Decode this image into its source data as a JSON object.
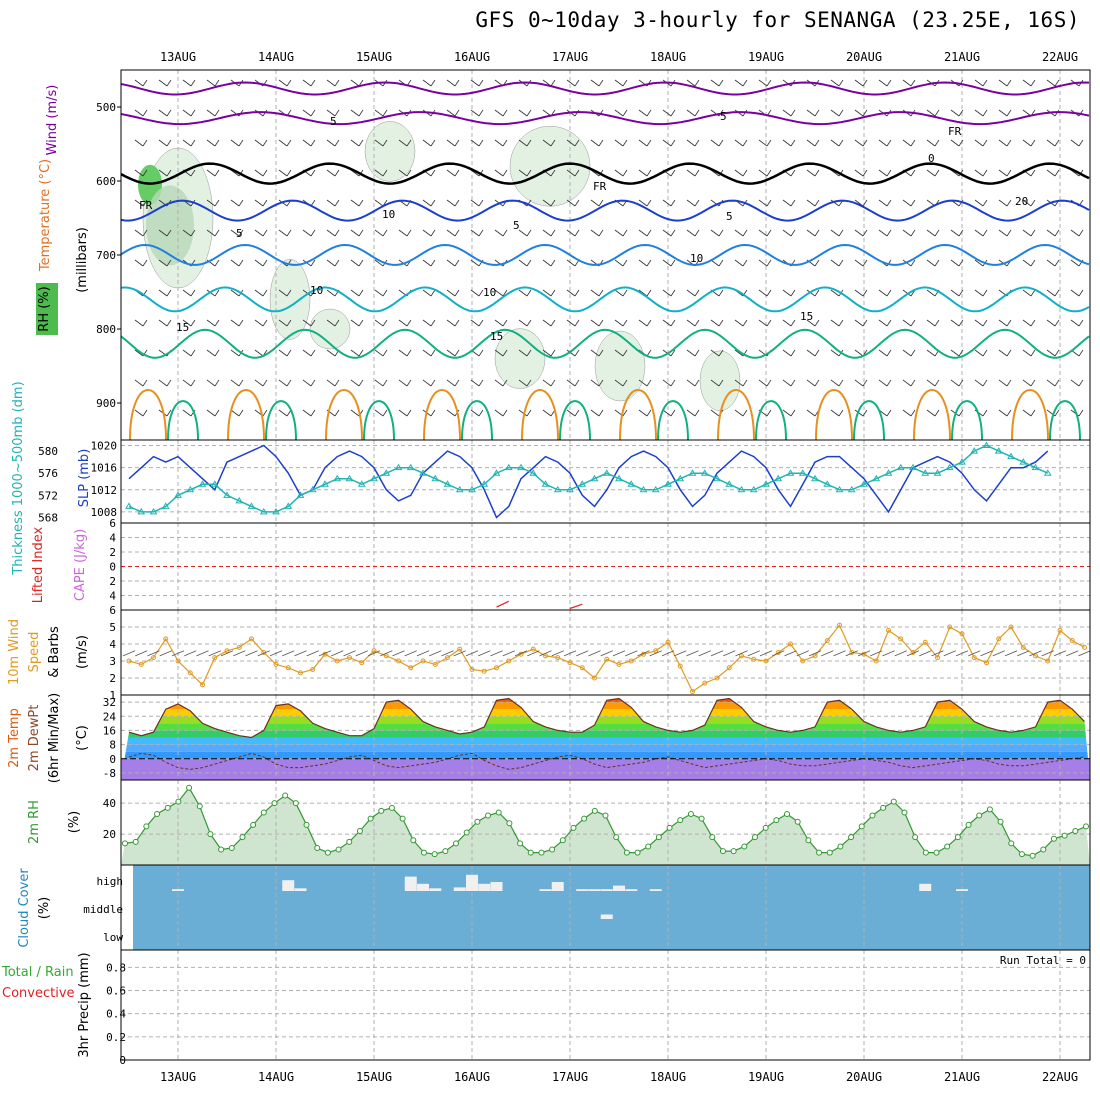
{
  "title": "GFS 0~10day 3-hourly for SENANGA (23.25E, 16S)",
  "dates": [
    "13AUG",
    "14AUG",
    "15AUG",
    "16AUG",
    "17AUG",
    "18AUG",
    "19AUG",
    "20AUG",
    "21AUG",
    "22AUG"
  ],
  "colors": {
    "wind": "#7a00a0",
    "temperature": "#e07020",
    "rh": "#33aa33",
    "slp": "#1a3fcc",
    "thickness": "#22b3b3",
    "lifted": "#dd2222",
    "cape": "#cc66dd",
    "wind10": "#e09a20",
    "temp2m": "#e05a10",
    "rh2m": "#339933",
    "cloud": "#6aaed6",
    "precip_rain": "#33aa33",
    "precip_conv": "#dd2222"
  },
  "panel_labels": {
    "upper": {
      "wind": "Wind (m/s)",
      "temperature": "Temperature (°C)",
      "rh": "RH (%)",
      "units": "(millibars)"
    },
    "slp": {
      "thickness": "Thickness 1000~500mb (dm)",
      "slp": "SLP (mb)"
    },
    "stab": {
      "lifted": "Lifted Index",
      "cape": "CAPE (J/kg)"
    },
    "wind10": {
      "main": "10m Wind",
      "speed": "Speed",
      "barbs": "& Barbs",
      "units": "(m/s)"
    },
    "temp2m": {
      "temp": "2m Temp",
      "dewpt": "2m DewPt",
      "minmax": "(6hr Min/Max)",
      "units": "(°C)"
    },
    "rh2m": {
      "main": "2m RH",
      "units": "(%)"
    },
    "cloud": {
      "main": "Cloud Cover",
      "units": "(%)"
    },
    "precip": {
      "total": "Total / Rain",
      "conv": "Convective",
      "main": "3hr Precip (mm)"
    }
  },
  "run_total": "Run Total = 0",
  "chart_data": [
    {
      "type": "heatmap",
      "name": "upper_air",
      "ylabel": "millibars",
      "yticks": [
        500,
        600,
        700,
        800,
        900
      ],
      "ylim": [
        450,
        950
      ],
      "contour_labels": [
        "5",
        "5",
        "FR",
        "FR",
        "FR",
        "5",
        "5",
        "10",
        "10",
        "10",
        "15",
        "15",
        "15",
        "20",
        "10",
        "5",
        "0"
      ],
      "fr_level_mb": [
        620,
        640,
        650,
        615,
        600,
        590,
        600,
        585,
        580,
        590,
        570,
        560,
        555,
        550,
        560
      ]
    },
    {
      "type": "line",
      "name": "slp_thickness",
      "x": [
        "12AUG18",
        "12AUG21",
        "13AUG00",
        "13AUG03",
        "13AUG06",
        "13AUG09",
        "13AUG12",
        "13AUG15",
        "13AUG18",
        "13AUG21",
        "14AUG00",
        "14AUG03",
        "14AUG06",
        "14AUG09",
        "14AUG12",
        "14AUG15",
        "14AUG18",
        "14AUG21",
        "15AUG00",
        "15AUG03",
        "15AUG06",
        "15AUG09",
        "15AUG12",
        "15AUG15",
        "15AUG18",
        "15AUG21",
        "16AUG00",
        "16AUG03",
        "16AUG06",
        "16AUG09",
        "16AUG12",
        "16AUG15",
        "16AUG18",
        "16AUG21",
        "17AUG00",
        "17AUG03",
        "17AUG06",
        "17AUG09",
        "17AUG12",
        "17AUG15",
        "17AUG18",
        "17AUG21",
        "18AUG00",
        "18AUG03",
        "18AUG06",
        "18AUG09",
        "18AUG12",
        "18AUG15",
        "18AUG18",
        "18AUG21",
        "19AUG00",
        "19AUG03",
        "19AUG06",
        "19AUG09",
        "19AUG12",
        "19AUG15",
        "19AUG18",
        "19AUG21",
        "20AUG00",
        "20AUG03",
        "20AUG06",
        "20AUG09",
        "20AUG12",
        "20AUG15",
        "20AUG18",
        "20AUG21",
        "21AUG00",
        "21AUG03",
        "21AUG06",
        "21AUG09",
        "21AUG12",
        "21AUG15",
        "21AUG18",
        "21AUG21",
        "22AUG00",
        "22AUG03",
        "22AUG06",
        "22AUG09"
      ],
      "series": [
        {
          "name": "SLP (mb)",
          "axis": "right",
          "values": [
            1013,
            1012,
            1014,
            1016,
            1018,
            1017,
            1018,
            1016,
            1014,
            1012,
            1017,
            1018,
            1019,
            1020,
            1018,
            1015,
            1011,
            1012,
            1016,
            1018,
            1019,
            1018,
            1016,
            1012,
            1010,
            1011,
            1015,
            1017,
            1019,
            1018,
            1016,
            1012,
            1007,
            1009,
            1014,
            1016,
            1018,
            1017,
            1015,
            1011,
            1009,
            1012,
            1016,
            1018,
            1019,
            1018,
            1016,
            1012,
            1009,
            1011,
            1015,
            1017,
            1019,
            1018,
            1016,
            1012,
            1009,
            1013,
            1017,
            1018,
            1018,
            1016,
            1014,
            1011,
            1008,
            1012,
            1016,
            1017,
            1018,
            1017,
            1015,
            1012,
            1010,
            1013,
            1016,
            1016,
            1017,
            1019
          ]
        },
        {
          "name": "Thickness (dm)",
          "axis": "left",
          "values": [
            572,
            571,
            570,
            569,
            569,
            570,
            572,
            573,
            574,
            574,
            572,
            571,
            570,
            569,
            569,
            570,
            572,
            573,
            574,
            575,
            575,
            574,
            575,
            576,
            577,
            577,
            576,
            575,
            574,
            573,
            573,
            574,
            576,
            577,
            577,
            576,
            574,
            573,
            573,
            574,
            575,
            576,
            575,
            574,
            573,
            573,
            574,
            575,
            576,
            576,
            575,
            574,
            573,
            573,
            574,
            575,
            576,
            576,
            575,
            574,
            573,
            573,
            574,
            575,
            576,
            577,
            577,
            576,
            576,
            577,
            578,
            580,
            581,
            580,
            579,
            578,
            577,
            576
          ]
        }
      ],
      "y_left_ticks": [
        568,
        572,
        576,
        580
      ],
      "y_right_ticks": [
        1008,
        1012,
        1016,
        1020
      ],
      "ylim_left": [
        567,
        582
      ],
      "ylim_right": [
        1006,
        1021
      ]
    },
    {
      "type": "line",
      "name": "lifted_index_cape",
      "yticks": [
        6,
        4,
        2,
        0,
        -2,
        -4,
        -6
      ],
      "ylim": [
        -6,
        6
      ],
      "reference_line": 0,
      "series": [
        {
          "name": "Lifted Index",
          "segments": [
            {
              "x": [
                "16AUG18",
                "16AUG21"
              ],
              "values": [
                5.6,
                4.8
              ]
            },
            {
              "x": [
                "17AUG12",
                "17AUG15"
              ],
              "values": [
                5.8,
                5.2
              ]
            }
          ]
        }
      ]
    },
    {
      "type": "line",
      "name": "wind10m",
      "ylabel": "(m/s)",
      "yticks": [
        1,
        2,
        3,
        4,
        5
      ],
      "ylim": [
        1,
        6
      ],
      "series": [
        {
          "name": "10m Wind Speed",
          "values": [
            2.5,
            3.2,
            3.0,
            2.8,
            3.2,
            4.3,
            3.0,
            2.3,
            1.6,
            3.2,
            3.6,
            3.8,
            4.3,
            3.5,
            2.8,
            2.6,
            2.3,
            2.5,
            3.4,
            3.0,
            3.2,
            2.9,
            3.6,
            3.3,
            3.0,
            2.6,
            3.0,
            2.8,
            3.2,
            3.7,
            2.5,
            2.4,
            2.6,
            3.0,
            3.4,
            3.7,
            3.3,
            3.2,
            2.9,
            2.6,
            2.0,
            3.1,
            2.8,
            3.0,
            3.4,
            3.6,
            4.1,
            2.7,
            1.2,
            1.7,
            2.0,
            2.6,
            3.3,
            3.1,
            3.0,
            3.5,
            4.0,
            3.0,
            3.3,
            4.2,
            5.1,
            3.5,
            3.4,
            3.0,
            4.8,
            4.3,
            3.5,
            4.1,
            3.2,
            5.0,
            4.6,
            3.2,
            2.9,
            4.3,
            5.0,
            3.8,
            3.3,
            3.0,
            4.8,
            4.2,
            3.8
          ]
        }
      ]
    },
    {
      "type": "area",
      "name": "temp2m",
      "ylabel": "(°C)",
      "yticks": [
        -8,
        0,
        8,
        16,
        24,
        32
      ],
      "ylim": [
        -12,
        36
      ],
      "series": [
        {
          "name": "2m Temp",
          "values": [
            20,
            17,
            15,
            13,
            15,
            28,
            31,
            27,
            20,
            17,
            15,
            13,
            12,
            16,
            30,
            31,
            27,
            20,
            17,
            15,
            13,
            13,
            17,
            32,
            33,
            28,
            21,
            18,
            16,
            14,
            15,
            18,
            33,
            34,
            29,
            21,
            18,
            16,
            15,
            15,
            19,
            33,
            34,
            29,
            21,
            18,
            16,
            15,
            16,
            19,
            33,
            34,
            29,
            21,
            18,
            16,
            15,
            16,
            18,
            32,
            33,
            28,
            21,
            18,
            16,
            15,
            16,
            18,
            32,
            33,
            28,
            21,
            18,
            16,
            15,
            16,
            18,
            32,
            33,
            28,
            21,
            18,
            16,
            15,
            16,
            18,
            20
          ]
        },
        {
          "name": "2m DewPt",
          "values": [
            -2,
            -1,
            1,
            3,
            2,
            -2,
            -5,
            -6,
            -5,
            -3,
            -1,
            1,
            3,
            1,
            -3,
            -5,
            -5,
            -4,
            -3,
            -1,
            1,
            2,
            -1,
            -4,
            -5,
            -4,
            -3,
            -2,
            0,
            2,
            3,
            -1,
            -4,
            -6,
            -5,
            -3,
            -1,
            1,
            2,
            0,
            -3,
            -5,
            -4,
            -3,
            -2,
            0,
            1,
            -1,
            -3,
            -5,
            -4,
            -3,
            -2,
            -1,
            0,
            -1,
            -3,
            -4,
            -4,
            -3,
            -2,
            -1,
            0,
            -1,
            -2,
            -4,
            -5,
            -4,
            -3,
            -2,
            -1,
            0,
            -1,
            -3,
            -4,
            -4,
            -3,
            -2,
            -1,
            0,
            1
          ]
        }
      ]
    },
    {
      "type": "area",
      "name": "rh2m",
      "ylabel": "(%)",
      "yticks": [
        20,
        40
      ],
      "ylim": [
        0,
        55
      ],
      "series": [
        {
          "name": "2m RH",
          "values": [
            14,
            15,
            25,
            33,
            37,
            41,
            50,
            38,
            20,
            10,
            11,
            18,
            26,
            34,
            40,
            45,
            40,
            26,
            11,
            8,
            10,
            15,
            22,
            30,
            35,
            37,
            30,
            16,
            8,
            7,
            9,
            14,
            21,
            28,
            32,
            34,
            27,
            14,
            8,
            8,
            10,
            16,
            24,
            30,
            35,
            32,
            18,
            8,
            8,
            12,
            18,
            24,
            29,
            33,
            30,
            18,
            9,
            9,
            12,
            18,
            24,
            29,
            33,
            28,
            16,
            8,
            8,
            12,
            18,
            25,
            32,
            37,
            41,
            34,
            18,
            8,
            8,
            12,
            18,
            26,
            32,
            36,
            28,
            14,
            7,
            6,
            10,
            17,
            19,
            22,
            25
          ]
        }
      ]
    },
    {
      "type": "bar",
      "name": "cloud_cover",
      "ylabel": "(%)",
      "levels": [
        "high",
        "middle",
        "low"
      ],
      "high_blocks": [
        {
          "x": "13AUG12",
          "value": 10
        },
        {
          "x": "14AUG15",
          "value": 60
        },
        {
          "x": "14AUG18",
          "value": 15
        },
        {
          "x": "15AUG21",
          "value": 80
        },
        {
          "x": "16AUG00",
          "value": 40
        },
        {
          "x": "16AUG03",
          "value": 15
        },
        {
          "x": "16AUG09",
          "value": 20
        },
        {
          "x": "16AUG12",
          "value": 90
        },
        {
          "x": "16AUG15",
          "value": 40
        },
        {
          "x": "16AUG18",
          "value": 50
        },
        {
          "x": "17AUG06",
          "value": 10
        },
        {
          "x": "17AUG09",
          "value": 50
        },
        {
          "x": "17AUG15",
          "value": 10
        },
        {
          "x": "17AUG18",
          "value": 10
        },
        {
          "x": "17AUG21",
          "value": 10
        },
        {
          "x": "18AUG00",
          "value": 30
        },
        {
          "x": "18AUG03",
          "value": 10
        },
        {
          "x": "18AUG09",
          "value": 10
        },
        {
          "x": "21AUG03",
          "value": 40
        },
        {
          "x": "21AUG12",
          "value": 10
        }
      ],
      "middle_blocks": [
        {
          "x": "17AUG21",
          "value": 25
        }
      ]
    },
    {
      "type": "bar",
      "name": "precip_3hr",
      "ylabel": "3hr Precip (mm)",
      "yticks": [
        0,
        0.2,
        0.4,
        0.6,
        0.8
      ],
      "ylim": [
        0,
        0.95
      ],
      "values": []
    }
  ]
}
